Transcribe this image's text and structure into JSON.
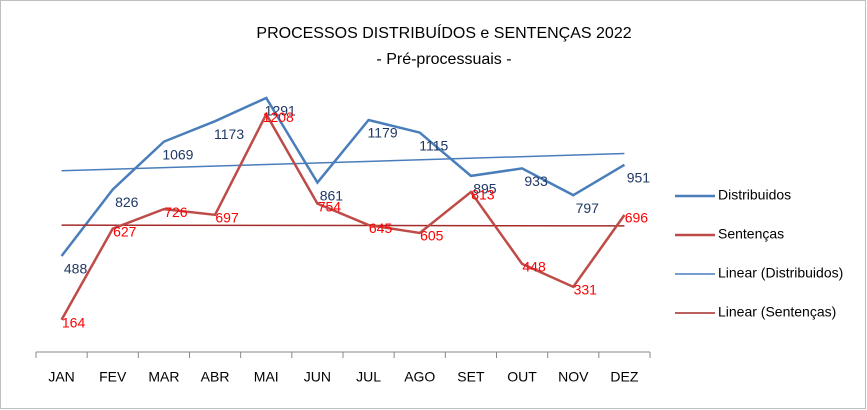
{
  "chart_data": {
    "type": "line",
    "title": "PROCESSOS DISTRIBUÍDOS e SENTENÇAS 2022",
    "subtitle": "- Pré-processuais -",
    "categories": [
      "JAN",
      "FEV",
      "MAR",
      "ABR",
      "MAI",
      "JUN",
      "JUL",
      "AGO",
      "SET",
      "OUT",
      "NOV",
      "DEZ"
    ],
    "series": [
      {
        "name": "Distribuidos",
        "color": "#4a7ebb",
        "label_color": "#1f3864",
        "values": [
          488,
          826,
          1069,
          1173,
          1291,
          861,
          1179,
          1115,
          895,
          933,
          797,
          951
        ],
        "trendline": {
          "type": "linear",
          "name": "Linear (Distribuidos)",
          "color": "#4a7ebb"
        }
      },
      {
        "name": "Sentenças",
        "color": "#be4b48",
        "label_color": "#ff0000",
        "values": [
          164,
          627,
          726,
          697,
          1208,
          754,
          645,
          605,
          813,
          448,
          331,
          696
        ],
        "trendline": {
          "type": "linear",
          "name": "Linear (Sentenças)",
          "color": "#a52a2a"
        }
      }
    ],
    "ylim": [
      0,
      1400
    ],
    "legend": "right"
  }
}
